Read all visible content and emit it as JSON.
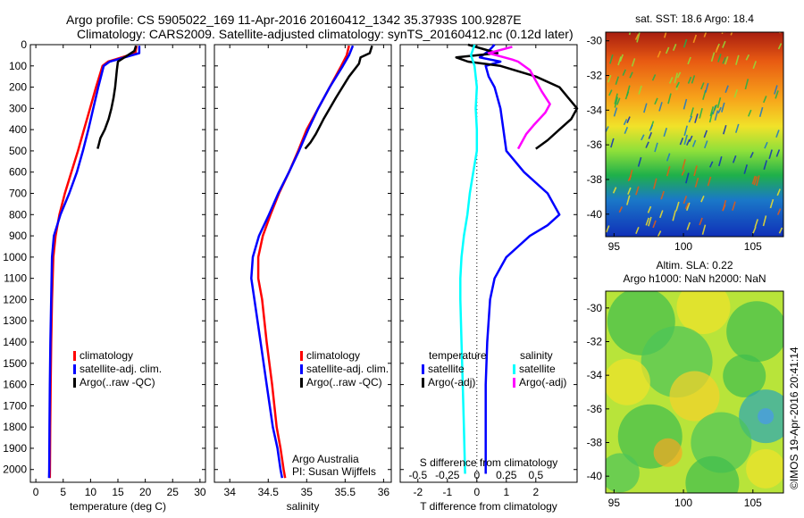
{
  "header": {
    "line1": "Argo profile: CS 5905022_169 11-Apr-2016 20160412_1342 35.3793S 100.9287E",
    "line2": "Climatology: CARS2009. Satellite-adjusted climatology: synTS_20160412.nc (0.12d later)"
  },
  "colors": {
    "climatology": "#ff0000",
    "satellite": "#0000ff",
    "argo": "#000000",
    "sal_satellite": "#00ffff",
    "sal_argo": "#ff00ff"
  },
  "depth_axis": {
    "ticks": [
      "0",
      "100",
      "200",
      "300",
      "400",
      "500",
      "600",
      "700",
      "800",
      "900",
      "1000",
      "1100",
      "1200",
      "1300",
      "1400",
      "1500",
      "1600",
      "1700",
      "1800",
      "1900",
      "2000"
    ],
    "range": [
      0,
      2060
    ],
    "reversed": true
  },
  "chart_data": [
    {
      "type": "line",
      "panel": "temperature",
      "xlabel": "temperature (deg C)",
      "ylabel": "",
      "xlim": [
        -1,
        31
      ],
      "ylim": [
        2060,
        0
      ],
      "xticks": [
        "0",
        "5",
        "10",
        "15",
        "20",
        "25",
        "30"
      ],
      "legend": [
        "climatology",
        "satellite-adj. clim.",
        "Argo(..raw -QC)"
      ],
      "series": [
        {
          "name": "climatology",
          "x": [
            18.4,
            18.2,
            13.2,
            12.2,
            11.0,
            9.9,
            8.8,
            7.7,
            6.5,
            5.3,
            4.3,
            3.6,
            3.2,
            2.95,
            2.8,
            2.7,
            2.62,
            2.58,
            2.56
          ],
          "y": [
            5,
            40,
            80,
            100,
            200,
            300,
            400,
            500,
            600,
            700,
            800,
            900,
            1000,
            1200,
            1400,
            1600,
            1800,
            2000,
            2040
          ]
        },
        {
          "name": "satellite-adj. clim.",
          "x": [
            18.9,
            18.9,
            13.5,
            12.4,
            11.4,
            10.5,
            9.6,
            8.6,
            7.5,
            6.1,
            4.5,
            3.3,
            2.95,
            2.8,
            2.65,
            2.56,
            2.5,
            2.45,
            2.42
          ],
          "y": [
            5,
            40,
            80,
            100,
            200,
            300,
            400,
            500,
            600,
            700,
            800,
            900,
            1000,
            1200,
            1400,
            1600,
            1800,
            2000,
            2040
          ]
        },
        {
          "name": "Argo(..raw -QC)",
          "x": [
            18.3,
            18.0,
            15.0,
            14.8,
            14.5,
            14.2,
            13.8,
            13.3,
            12.6,
            11.8,
            11.5,
            11.3
          ],
          "y": [
            5,
            30,
            80,
            120,
            200,
            250,
            300,
            350,
            400,
            440,
            470,
            490
          ]
        }
      ]
    },
    {
      "type": "line",
      "panel": "salinity",
      "xlabel": "salinity",
      "ylabel": "",
      "xlim": [
        33.8,
        36.1
      ],
      "ylim": [
        2060,
        0
      ],
      "xticks": [
        "34",
        "34.5",
        "35",
        "35.5",
        "36"
      ],
      "legend": [
        "climatology",
        "satellite-adj. clim.",
        "Argo(..raw -QC)"
      ],
      "series": [
        {
          "name": "climatology",
          "x": [
            35.55,
            35.52,
            35.45,
            35.3,
            35.15,
            35.0,
            34.89,
            34.77,
            34.64,
            34.53,
            34.43,
            34.37,
            34.37,
            34.42,
            34.48,
            34.55,
            34.61,
            34.66,
            34.7,
            34.72
          ],
          "y": [
            5,
            50,
            100,
            200,
            300,
            400,
            500,
            600,
            700,
            800,
            900,
            1000,
            1100,
            1200,
            1400,
            1600,
            1800,
            1900,
            2000,
            2040
          ]
        },
        {
          "name": "satellite-adj. clim.",
          "x": [
            35.6,
            35.55,
            35.47,
            35.3,
            35.15,
            35.02,
            34.9,
            34.77,
            34.63,
            34.51,
            34.38,
            34.3,
            34.28,
            34.32,
            34.4,
            34.48,
            34.56,
            34.62,
            34.66,
            34.68
          ],
          "y": [
            5,
            50,
            100,
            200,
            300,
            400,
            500,
            600,
            700,
            800,
            900,
            1000,
            1100,
            1200,
            1400,
            1600,
            1800,
            1900,
            2000,
            2040
          ]
        },
        {
          "name": "Argo(..raw -QC)",
          "x": [
            35.85,
            35.82,
            35.7,
            35.68,
            35.55,
            35.38,
            35.22,
            35.12,
            35.05,
            34.98
          ],
          "y": [
            5,
            40,
            60,
            90,
            150,
            250,
            350,
            420,
            460,
            490
          ]
        }
      ],
      "annotation": [
        "Argo Australia",
        "PI: Susan Wijffels"
      ]
    },
    {
      "type": "line",
      "panel": "difference",
      "xlabel": "T difference from climatology",
      "x2label": "S difference from climatology",
      "xlim": [
        -2.6,
        3.4
      ],
      "x2lim": [
        -0.65,
        0.85
      ],
      "ylim": [
        2060,
        0
      ],
      "xticks": [
        "-2",
        "-1",
        "0",
        "1",
        "2"
      ],
      "x2ticks": [
        "-0.5",
        "-0.25",
        "0",
        "0.25",
        "0.5"
      ],
      "legend": [
        "temperature",
        "satellite",
        "Argo(-adj)",
        "salinity",
        "satellite",
        "Argo(-adj)"
      ],
      "series": [
        {
          "name": "temperature satellite",
          "axis": "T",
          "x": [
            0.6,
            0.4,
            0.1,
            0.8,
            0.3,
            0.4,
            0.6,
            0.8,
            0.9,
            1.0,
            1.6,
            2.4,
            2.8,
            2.4,
            1.8,
            1.4,
            1.0,
            0.6,
            0.45,
            0.35,
            0.3,
            0.3,
            0.3
          ],
          "y": [
            0,
            30,
            60,
            80,
            100,
            150,
            200,
            300,
            400,
            500,
            600,
            700,
            800,
            850,
            900,
            950,
            1000,
            1100,
            1200,
            1400,
            1600,
            1800,
            2020
          ]
        },
        {
          "name": "temperature Argo(-adj)",
          "axis": "T",
          "x": [
            -0.3,
            0.7,
            -0.7,
            -0.3,
            0.8,
            2.0,
            2.8,
            3.4,
            3.2,
            2.8,
            2.4,
            2.0
          ],
          "y": [
            0,
            40,
            60,
            80,
            100,
            150,
            200,
            300,
            350,
            400,
            450,
            490
          ]
        },
        {
          "name": "salinity satellite",
          "axis": "S",
          "x": [
            -0.02,
            -0.05,
            -0.02,
            0.0,
            -0.01,
            0.0,
            0.0,
            -0.03,
            -0.06,
            -0.08,
            -0.11,
            -0.13,
            -0.14,
            -0.14,
            -0.13,
            -0.12,
            -0.11,
            -0.1
          ],
          "y": [
            0,
            50,
            100,
            200,
            300,
            400,
            500,
            600,
            700,
            800,
            900,
            1000,
            1100,
            1200,
            1400,
            1600,
            1800,
            2020
          ]
        },
        {
          "name": "salinity Argo(-adj)",
          "axis": "S",
          "x": [
            0.3,
            0.1,
            0.3,
            0.35,
            0.45,
            0.55,
            0.62,
            0.58,
            0.48,
            0.42,
            0.38,
            0.35
          ],
          "y": [
            10,
            40,
            70,
            80,
            120,
            220,
            280,
            320,
            380,
            420,
            460,
            490
          ]
        }
      ]
    },
    {
      "type": "heatmap",
      "panel": "sst_map",
      "title": "sat. SST: 18.6  Argo: 18.4",
      "xlim": [
        94.4,
        107.2
      ],
      "ylim": [
        -41.3,
        -29.5
      ],
      "xticks": [
        "95",
        "100",
        "105"
      ],
      "yticks": [
        "-30",
        "-32",
        "-34",
        "-36",
        "-38",
        "-40"
      ]
    },
    {
      "type": "heatmap",
      "panel": "sla_map",
      "title": [
        "Altim. SLA: 0.22",
        "Argo h1000: NaN h2000: NaN"
      ],
      "xlim": [
        94.4,
        107.2
      ],
      "ylim": [
        -41.0,
        -29.0
      ],
      "xticks": [
        "95",
        "100",
        "105"
      ],
      "yticks": [
        "-30",
        "-32",
        "-34",
        "-36",
        "-38",
        "-40"
      ]
    }
  ],
  "side_label": "©IMOS 19-Apr-2016 20:41:14"
}
